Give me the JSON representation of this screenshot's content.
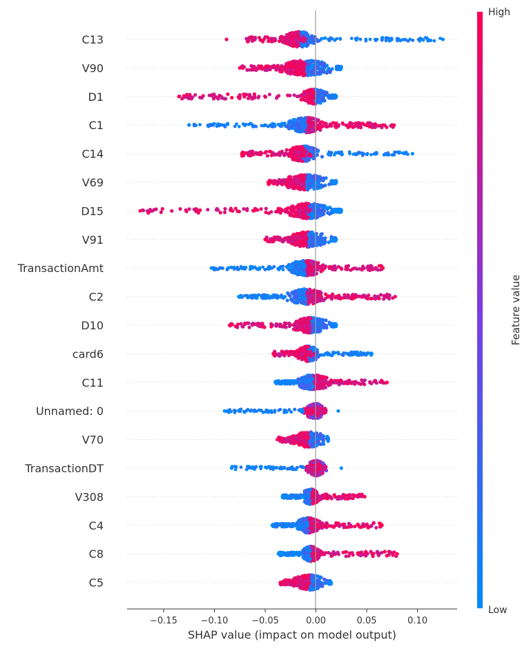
{
  "chart_data": {
    "type": "scatter",
    "title": "",
    "xlabel": "SHAP value (impact on model output)",
    "xlim": [
      -0.186,
      0.139
    ],
    "x_ticks": [
      -0.15,
      -0.1,
      -0.05,
      0.0,
      0.05,
      0.1
    ],
    "x_tick_labels": [
      "−0.15",
      "−0.10",
      "−0.05",
      "0.00",
      "0.05",
      "0.10"
    ],
    "colorbar": {
      "label": "Feature value",
      "high_label": "High",
      "low_label": "Low",
      "low_color": "#008bfb",
      "high_color": "#ff0052"
    },
    "features": [
      {
        "name": "C13",
        "min": -0.088,
        "max": 0.125,
        "core": [
          -0.035,
          0.003
        ],
        "high_side": "left",
        "high_range": [
          -0.07,
          -0.01
        ]
      },
      {
        "name": "V90",
        "min": -0.075,
        "max": 0.025,
        "core": [
          -0.04,
          0.02
        ],
        "high_side": "left",
        "high_range": [
          -0.075,
          -0.015
        ]
      },
      {
        "name": "D1",
        "min": -0.135,
        "max": 0.02,
        "core": [
          -0.015,
          0.012
        ],
        "high_side": "left",
        "high_range": [
          -0.135,
          -0.01
        ]
      },
      {
        "name": "C1",
        "min": -0.125,
        "max": 0.077,
        "core": [
          -0.03,
          0.01
        ],
        "high_side": "right",
        "high_range": [
          0.002,
          0.077
        ]
      },
      {
        "name": "C14",
        "min": -0.073,
        "max": 0.095,
        "core": [
          -0.03,
          0.005
        ],
        "high_side": "left",
        "high_range": [
          -0.073,
          -0.005
        ]
      },
      {
        "name": "V69",
        "min": -0.047,
        "max": 0.02,
        "core": [
          -0.035,
          0.015
        ],
        "high_side": "left",
        "high_range": [
          -0.047,
          -0.012
        ]
      },
      {
        "name": "D15",
        "min": -0.173,
        "max": 0.025,
        "core": [
          -0.03,
          0.015
        ],
        "high_side": "left",
        "high_range": [
          -0.173,
          -0.005
        ]
      },
      {
        "name": "V91",
        "min": -0.05,
        "max": 0.02,
        "core": [
          -0.03,
          0.015
        ],
        "high_side": "left",
        "high_range": [
          -0.05,
          -0.015
        ]
      },
      {
        "name": "TransactionAmt",
        "min": -0.103,
        "max": 0.066,
        "core": [
          -0.03,
          0.01
        ],
        "high_side": "right",
        "high_range": [
          -0.005,
          0.066
        ]
      },
      {
        "name": "C2",
        "min": -0.076,
        "max": 0.078,
        "core": [
          -0.03,
          0.01
        ],
        "high_side": "right",
        "high_range": [
          0.0,
          0.078
        ]
      },
      {
        "name": "D10",
        "min": -0.085,
        "max": 0.02,
        "core": [
          -0.025,
          0.015
        ],
        "high_side": "left",
        "high_range": [
          -0.085,
          -0.005
        ]
      },
      {
        "name": "card6",
        "min": -0.042,
        "max": 0.055,
        "core": [
          -0.02,
          0.005
        ],
        "high_side": "left",
        "high_range": [
          -0.042,
          -0.002
        ]
      },
      {
        "name": "C11",
        "min": -0.04,
        "max": 0.07,
        "core": [
          -0.02,
          0.015
        ],
        "high_side": "right",
        "high_range": [
          0.0,
          0.07
        ]
      },
      {
        "name": "Unnamed: 0",
        "min": -0.09,
        "max": 0.022,
        "core": [
          -0.012,
          0.01
        ],
        "high_side": "mixed",
        "high_range": [
          -0.012,
          0.01
        ]
      },
      {
        "name": "V70",
        "min": -0.038,
        "max": 0.012,
        "core": [
          -0.025,
          0.012
        ],
        "high_side": "left",
        "high_range": [
          -0.038,
          -0.01
        ]
      },
      {
        "name": "TransactionDT",
        "min": -0.083,
        "max": 0.025,
        "core": [
          -0.01,
          0.01
        ],
        "high_side": "mixed",
        "high_range": [
          -0.01,
          0.01
        ]
      },
      {
        "name": "V308",
        "min": -0.033,
        "max": 0.048,
        "core": [
          -0.015,
          0.005
        ],
        "high_side": "right",
        "high_range": [
          -0.005,
          0.048
        ]
      },
      {
        "name": "C4",
        "min": -0.043,
        "max": 0.065,
        "core": [
          -0.02,
          0.005
        ],
        "high_side": "right",
        "high_range": [
          -0.005,
          0.065
        ]
      },
      {
        "name": "C8",
        "min": -0.037,
        "max": 0.08,
        "core": [
          -0.015,
          0.005
        ],
        "high_side": "right",
        "high_range": [
          -0.005,
          0.08
        ]
      },
      {
        "name": "C5",
        "min": -0.035,
        "max": 0.015,
        "core": [
          -0.025,
          0.012
        ],
        "high_side": "left",
        "high_range": [
          -0.035,
          -0.01
        ]
      }
    ]
  }
}
